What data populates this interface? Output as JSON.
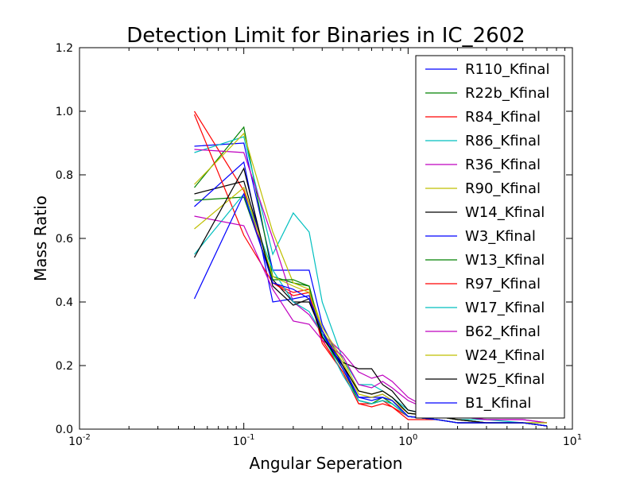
{
  "chart_data": {
    "type": "line",
    "title": "Detection Limit for Binaries in IC_2602",
    "xlabel": "Angular Seperation",
    "ylabel": "Mass Ratio",
    "xscale": "log",
    "xlim": [
      0.01,
      10
    ],
    "ylim": [
      0.0,
      1.2
    ],
    "x_ticks": [
      {
        "value": 0.01,
        "base": "10",
        "exp": "-2"
      },
      {
        "value": 0.1,
        "base": "10",
        "exp": "-1"
      },
      {
        "value": 1,
        "base": "10",
        "exp": "0"
      },
      {
        "value": 10,
        "base": "10",
        "exp": "1"
      }
    ],
    "y_ticks": [
      {
        "value": 0.0,
        "label": "0.0"
      },
      {
        "value": 0.2,
        "label": "0.2"
      },
      {
        "value": 0.4,
        "label": "0.4"
      },
      {
        "value": 0.6,
        "label": "0.6"
      },
      {
        "value": 0.8,
        "label": "0.8"
      },
      {
        "value": 1.0,
        "label": "1.0"
      },
      {
        "value": 1.2,
        "label": "1.2"
      }
    ],
    "grid": false,
    "legend_position": "top-right",
    "series": [
      {
        "name": "R110_Kfinal",
        "color": "#0000ff",
        "x": [
          0.05,
          0.1,
          0.15,
          0.2,
          0.25,
          0.3,
          0.4,
          0.5,
          0.6,
          0.7,
          0.8,
          1.0,
          1.5,
          2,
          3,
          5,
          7
        ],
        "y": [
          0.89,
          0.9,
          0.5,
          0.5,
          0.5,
          0.33,
          0.2,
          0.1,
          0.1,
          0.11,
          0.09,
          0.04,
          0.03,
          0.02,
          0.02,
          0.02,
          0.01
        ]
      },
      {
        "name": "R22b_Kfinal",
        "color": "#008000",
        "x": [
          0.05,
          0.1,
          0.15,
          0.2,
          0.25,
          0.3,
          0.4,
          0.5,
          0.6,
          0.7,
          0.8,
          1.0,
          1.5,
          2,
          3,
          5,
          7
        ],
        "y": [
          0.76,
          0.95,
          0.48,
          0.46,
          0.45,
          0.3,
          0.19,
          0.09,
          0.08,
          0.1,
          0.08,
          0.04,
          0.03,
          0.02,
          0.02,
          0.02,
          0.01
        ]
      },
      {
        "name": "R84_Kfinal",
        "color": "#ff0000",
        "x": [
          0.05,
          0.1,
          0.15,
          0.2,
          0.25,
          0.3,
          0.4,
          0.5,
          0.6,
          0.7,
          0.8,
          1.0,
          1.5,
          2,
          3,
          5,
          7
        ],
        "y": [
          1.0,
          0.75,
          0.46,
          0.43,
          0.44,
          0.28,
          0.18,
          0.08,
          0.08,
          0.09,
          0.07,
          0.04,
          0.03,
          0.02,
          0.02,
          0.02,
          0.01
        ]
      },
      {
        "name": "R86_Kfinal",
        "color": "#00bfbf",
        "x": [
          0.05,
          0.1,
          0.15,
          0.2,
          0.25,
          0.3,
          0.4,
          0.5,
          0.6,
          0.7,
          0.8,
          1.0,
          1.5,
          2,
          3,
          5,
          7
        ],
        "y": [
          0.87,
          0.92,
          0.55,
          0.68,
          0.62,
          0.4,
          0.22,
          0.14,
          0.14,
          0.12,
          0.1,
          0.06,
          0.04,
          0.03,
          0.03,
          0.02,
          0.02
        ]
      },
      {
        "name": "R36_Kfinal",
        "color": "#bf00bf",
        "x": [
          0.05,
          0.1,
          0.15,
          0.2,
          0.25,
          0.3,
          0.4,
          0.5,
          0.6,
          0.7,
          0.8,
          1.0,
          1.5,
          2,
          3,
          5,
          7
        ],
        "y": [
          0.88,
          0.87,
          0.6,
          0.4,
          0.36,
          0.3,
          0.24,
          0.18,
          0.16,
          0.17,
          0.15,
          0.1,
          0.05,
          0.04,
          0.03,
          0.03,
          0.02
        ]
      },
      {
        "name": "R90_Kfinal",
        "color": "#bfbf00",
        "x": [
          0.05,
          0.1,
          0.15,
          0.2,
          0.25,
          0.3,
          0.4,
          0.5,
          0.6,
          0.7,
          0.8,
          1.0,
          1.5,
          2,
          3,
          5,
          7
        ],
        "y": [
          0.77,
          0.93,
          0.62,
          0.46,
          0.44,
          0.32,
          0.22,
          0.12,
          0.11,
          0.12,
          0.1,
          0.05,
          0.04,
          0.03,
          0.02,
          0.02,
          0.02
        ]
      },
      {
        "name": "W14_Kfinal",
        "color": "#000000",
        "x": [
          0.05,
          0.1,
          0.15,
          0.2,
          0.25,
          0.3,
          0.4,
          0.5,
          0.6,
          0.7,
          0.8,
          1.0,
          1.5,
          2,
          3,
          5,
          7
        ],
        "y": [
          0.74,
          0.78,
          0.47,
          0.4,
          0.4,
          0.3,
          0.21,
          0.19,
          0.19,
          0.14,
          0.12,
          0.06,
          0.04,
          0.03,
          0.02,
          0.02,
          0.01
        ]
      },
      {
        "name": "W3_Kfinal",
        "color": "#0000ff",
        "x": [
          0.05,
          0.1,
          0.15,
          0.2,
          0.25,
          0.3,
          0.4,
          0.5,
          0.6,
          0.7,
          0.8,
          1.0,
          1.5,
          2,
          3,
          5,
          7
        ],
        "y": [
          0.7,
          0.84,
          0.4,
          0.41,
          0.42,
          0.3,
          0.2,
          0.1,
          0.1,
          0.1,
          0.09,
          0.04,
          0.03,
          0.02,
          0.02,
          0.02,
          0.01
        ]
      },
      {
        "name": "W13_Kfinal",
        "color": "#008000",
        "x": [
          0.05,
          0.1,
          0.15,
          0.2,
          0.25,
          0.3,
          0.4,
          0.5,
          0.6,
          0.7,
          0.8,
          1.0,
          1.5,
          2,
          3,
          5,
          7
        ],
        "y": [
          0.72,
          0.73,
          0.47,
          0.47,
          0.45,
          0.29,
          0.19,
          0.09,
          0.08,
          0.09,
          0.08,
          0.04,
          0.03,
          0.02,
          0.02,
          0.02,
          0.01
        ]
      },
      {
        "name": "R97_Kfinal",
        "color": "#ff0000",
        "x": [
          0.05,
          0.1,
          0.15,
          0.2,
          0.25,
          0.3,
          0.4,
          0.5,
          0.6,
          0.7,
          0.8,
          1.0,
          1.5,
          2,
          3,
          5,
          7
        ],
        "y": [
          0.99,
          0.61,
          0.46,
          0.42,
          0.43,
          0.27,
          0.18,
          0.08,
          0.07,
          0.08,
          0.07,
          0.03,
          0.03,
          0.02,
          0.02,
          0.02,
          0.01
        ]
      },
      {
        "name": "W17_Kfinal",
        "color": "#00bfbf",
        "x": [
          0.05,
          0.1,
          0.15,
          0.2,
          0.25,
          0.3,
          0.4,
          0.5,
          0.6,
          0.7,
          0.8,
          1.0,
          1.5,
          2,
          3,
          5,
          7
        ],
        "y": [
          0.55,
          0.74,
          0.5,
          0.4,
          0.37,
          0.3,
          0.17,
          0.09,
          0.08,
          0.09,
          0.08,
          0.04,
          0.03,
          0.02,
          0.02,
          0.02,
          0.01
        ]
      },
      {
        "name": "B62_Kfinal",
        "color": "#bf00bf",
        "x": [
          0.05,
          0.1,
          0.15,
          0.2,
          0.25,
          0.3,
          0.4,
          0.5,
          0.6,
          0.7,
          0.8,
          1.0,
          1.5,
          2,
          3,
          5,
          7
        ],
        "y": [
          0.67,
          0.64,
          0.44,
          0.34,
          0.33,
          0.28,
          0.23,
          0.14,
          0.13,
          0.15,
          0.13,
          0.09,
          0.05,
          0.04,
          0.03,
          0.03,
          0.02
        ]
      },
      {
        "name": "W24_Kfinal",
        "color": "#bfbf00",
        "x": [
          0.05,
          0.1,
          0.15,
          0.2,
          0.25,
          0.3,
          0.4,
          0.5,
          0.6,
          0.7,
          0.8,
          1.0,
          1.5,
          2,
          3,
          5,
          7
        ],
        "y": [
          0.63,
          0.76,
          0.48,
          0.45,
          0.43,
          0.31,
          0.21,
          0.11,
          0.1,
          0.11,
          0.09,
          0.05,
          0.04,
          0.03,
          0.02,
          0.02,
          0.02
        ]
      },
      {
        "name": "W25_Kfinal",
        "color": "#000000",
        "x": [
          0.05,
          0.1,
          0.15,
          0.2,
          0.25,
          0.3,
          0.4,
          0.5,
          0.6,
          0.7,
          0.8,
          1.0,
          1.5,
          2,
          3,
          5,
          7
        ],
        "y": [
          0.54,
          0.82,
          0.45,
          0.39,
          0.41,
          0.29,
          0.2,
          0.12,
          0.11,
          0.12,
          0.1,
          0.05,
          0.04,
          0.03,
          0.02,
          0.02,
          0.01
        ]
      },
      {
        "name": "B1_Kfinal",
        "color": "#0000ff",
        "x": [
          0.05,
          0.1,
          0.15,
          0.2,
          0.25,
          0.3,
          0.4,
          0.5,
          0.6,
          0.7,
          0.8,
          1.0,
          1.5,
          2,
          3,
          5,
          7
        ],
        "y": [
          0.41,
          0.74,
          0.46,
          0.44,
          0.41,
          0.31,
          0.19,
          0.1,
          0.09,
          0.1,
          0.09,
          0.04,
          0.03,
          0.02,
          0.02,
          0.02,
          0.01
        ]
      }
    ]
  }
}
